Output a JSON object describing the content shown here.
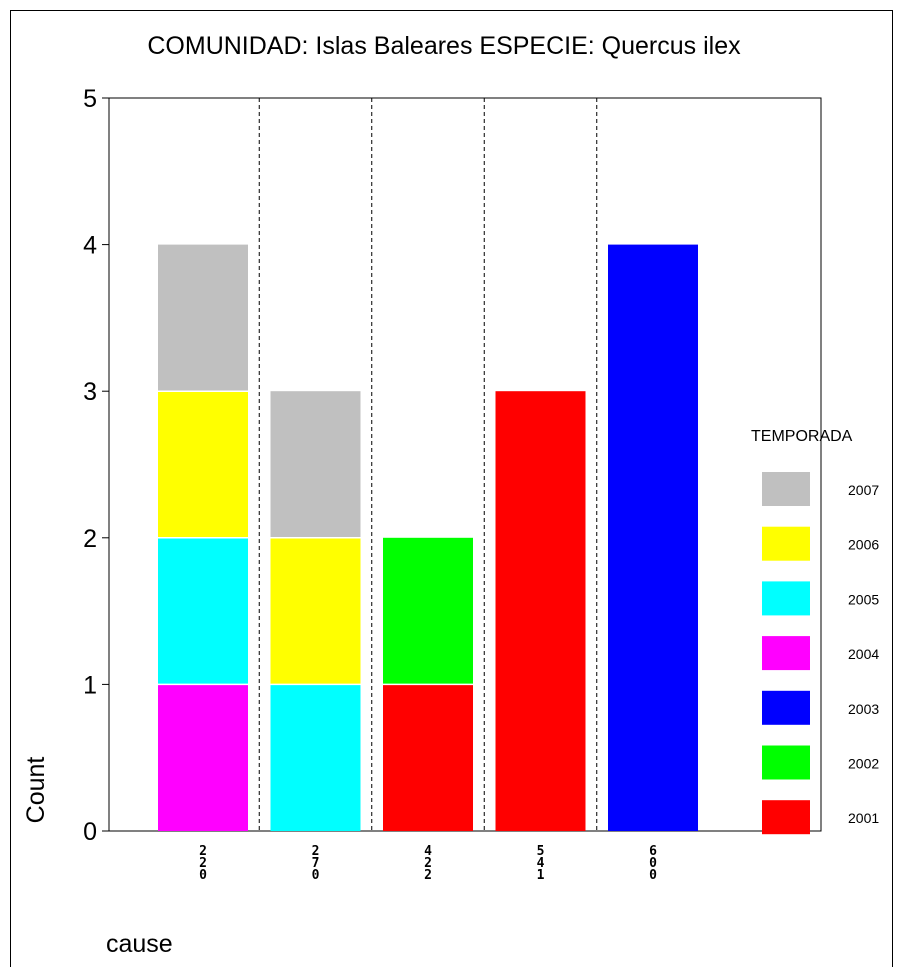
{
  "chart_data": {
    "type": "bar",
    "stacked": true,
    "title": "COMUNIDAD: Islas Baleares  ESPECIE: Quercus ilex",
    "xlabel": "cause",
    "ylabel": "Count",
    "ylim": [
      0,
      5
    ],
    "yticks": [
      0,
      1,
      2,
      3,
      4,
      5
    ],
    "categories": [
      "220",
      "270",
      "422",
      "541",
      "600"
    ],
    "legend_title": "TEMPORADA",
    "legend_placement": "right",
    "grid": false,
    "category_separators": "dashed",
    "series": [
      {
        "name": "2001",
        "color": "#ff0000",
        "values": [
          0,
          0,
          1,
          3,
          0
        ]
      },
      {
        "name": "2002",
        "color": "#00ff00",
        "values": [
          0,
          0,
          1,
          0,
          0
        ]
      },
      {
        "name": "2003",
        "color": "#0000ff",
        "values": [
          0,
          0,
          0,
          0,
          4
        ]
      },
      {
        "name": "2004",
        "color": "#ff00ff",
        "values": [
          1,
          0,
          0,
          0,
          0
        ]
      },
      {
        "name": "2005",
        "color": "#00ffff",
        "values": [
          1,
          1,
          0,
          0,
          0
        ]
      },
      {
        "name": "2006",
        "color": "#ffff00",
        "values": [
          1,
          1,
          0,
          0,
          0
        ]
      },
      {
        "name": "2007",
        "color": "#c0c0c0",
        "values": [
          1,
          1,
          0,
          0,
          0
        ]
      }
    ]
  }
}
